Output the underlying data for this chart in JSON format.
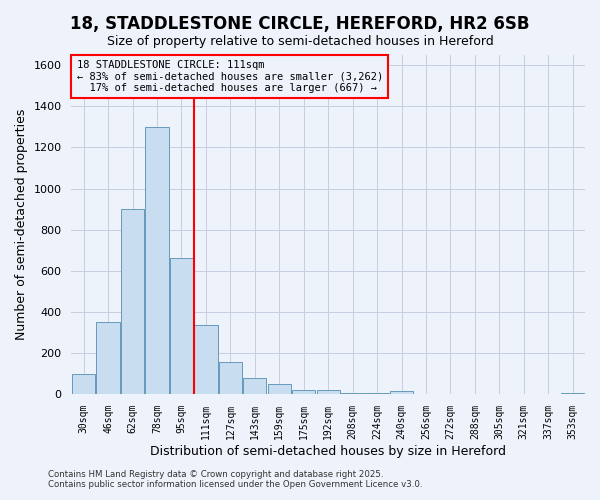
{
  "title": "18, STADDLESTONE CIRCLE, HEREFORD, HR2 6SB",
  "subtitle": "Size of property relative to semi-detached houses in Hereford",
  "xlabel": "Distribution of semi-detached houses by size in Hereford",
  "ylabel": "Number of semi-detached properties",
  "bar_labels": [
    "30sqm",
    "46sqm",
    "62sqm",
    "78sqm",
    "95sqm",
    "111sqm",
    "127sqm",
    "143sqm",
    "159sqm",
    "175sqm",
    "192sqm",
    "208sqm",
    "224sqm",
    "240sqm",
    "256sqm",
    "272sqm",
    "288sqm",
    "305sqm",
    "321sqm",
    "337sqm",
    "353sqm"
  ],
  "bar_values": [
    95,
    350,
    900,
    1300,
    660,
    335,
    155,
    80,
    50,
    20,
    20,
    5,
    5,
    15,
    0,
    0,
    0,
    0,
    0,
    0,
    5
  ],
  "bar_color": "#c8ddef",
  "bar_edge_color": "#6699bb",
  "vline_color": "red",
  "vline_bin": 5,
  "ylim": [
    0,
    1650
  ],
  "yticks": [
    0,
    200,
    400,
    600,
    800,
    1000,
    1200,
    1400,
    1600
  ],
  "annotation_title": "18 STADDLESTONE CIRCLE: 111sqm",
  "annotation_line1": "← 83% of semi-detached houses are smaller (3,262)",
  "annotation_line2": "  17% of semi-detached houses are larger (667) →",
  "annotation_box_color": "red",
  "footer1": "Contains HM Land Registry data © Crown copyright and database right 2025.",
  "footer2": "Contains public sector information licensed under the Open Government Licence v3.0.",
  "bg_color": "#eef2fb",
  "plot_bg_color": "#eef2fb",
  "grid_color": "#c8cce0",
  "title_fontsize": 12,
  "subtitle_fontsize": 9
}
